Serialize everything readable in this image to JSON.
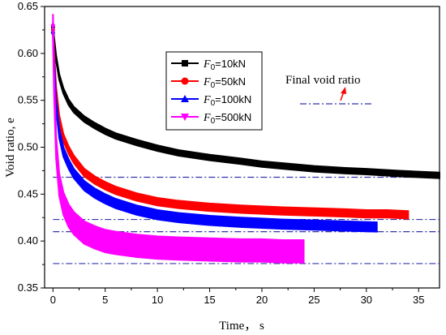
{
  "chart_data": {
    "type": "line",
    "xlabel": "Time， s",
    "ylabel": "Void ratio, e",
    "xlim": [
      -0.8,
      37
    ],
    "ylim": [
      0.35,
      0.65
    ],
    "xticks": [
      0,
      5,
      10,
      15,
      20,
      25,
      30,
      35
    ],
    "yticks": [
      0.35,
      0.4,
      0.45,
      0.5,
      0.55,
      0.6,
      0.65
    ],
    "xtick_labels": [
      "0",
      "5",
      "10",
      "15",
      "20",
      "25",
      "30",
      "35"
    ],
    "ytick_labels": [
      "0.35",
      "0.40",
      "0.45",
      "0.50",
      "0.55",
      "0.60",
      "0.65"
    ],
    "legend_position": "top-center",
    "series": [
      {
        "name": "F0=10kN",
        "legend_subscript": "0",
        "legend_suffix": "=10kN",
        "color": "#000000",
        "marker": "square",
        "x": [
          0,
          0.1,
          0.3,
          0.6,
          1,
          1.5,
          2,
          3,
          4,
          5,
          6,
          8,
          10,
          12,
          15,
          18,
          20,
          22,
          25,
          28,
          30,
          33,
          35,
          37
        ],
        "y": [
          0.628,
          0.615,
          0.595,
          0.575,
          0.56,
          0.548,
          0.54,
          0.53,
          0.523,
          0.517,
          0.512,
          0.505,
          0.499,
          0.494,
          0.489,
          0.485,
          0.482,
          0.48,
          0.477,
          0.475,
          0.474,
          0.472,
          0.471,
          0.47
        ],
        "band": 0.003,
        "final_void_ratio": 0.468
      },
      {
        "name": "F0=50kN",
        "legend_subscript": "0",
        "legend_suffix": "=50kN",
        "color": "#ff0000",
        "marker": "circle",
        "x": [
          0,
          0.1,
          0.3,
          0.6,
          1,
          1.5,
          2,
          3,
          4,
          5,
          6,
          8,
          10,
          12,
          15,
          18,
          20,
          22,
          25,
          28,
          30,
          32,
          34
        ],
        "y": [
          0.625,
          0.6,
          0.56,
          0.53,
          0.51,
          0.497,
          0.487,
          0.473,
          0.465,
          0.459,
          0.454,
          0.447,
          0.442,
          0.439,
          0.436,
          0.434,
          0.433,
          0.432,
          0.431,
          0.43,
          0.429,
          0.429,
          0.428
        ],
        "band": 0.004,
        "final_void_ratio": 0.423
      },
      {
        "name": "F0=100kN",
        "legend_subscript": "0",
        "legend_suffix": "=100kN",
        "color": "#0000ff",
        "marker": "triangle-up",
        "x": [
          0,
          0.1,
          0.3,
          0.6,
          1,
          1.5,
          2,
          3,
          4,
          5,
          6,
          8,
          10,
          12,
          15,
          18,
          20,
          22,
          25,
          28,
          31
        ],
        "y": [
          0.622,
          0.59,
          0.545,
          0.515,
          0.495,
          0.482,
          0.472,
          0.459,
          0.451,
          0.445,
          0.44,
          0.433,
          0.428,
          0.425,
          0.422,
          0.42,
          0.419,
          0.418,
          0.417,
          0.416,
          0.415
        ],
        "band": 0.005,
        "final_void_ratio": 0.41
      },
      {
        "name": "F0=500kN",
        "legend_subscript": "0",
        "legend_suffix": "=500kN",
        "color": "#ff00ff",
        "marker": "triangle-down",
        "x": [
          0,
          0.1,
          0.3,
          0.6,
          1,
          1.5,
          2,
          3,
          4,
          5,
          6,
          8,
          10,
          12,
          15,
          18,
          20,
          22,
          24
        ],
        "y": [
          0.63,
          0.57,
          0.5,
          0.46,
          0.44,
          0.427,
          0.419,
          0.409,
          0.404,
          0.4,
          0.398,
          0.395,
          0.393,
          0.392,
          0.391,
          0.39,
          0.39,
          0.389,
          0.389
        ],
        "band": 0.012,
        "final_void_ratio": 0.376
      }
    ],
    "reference_lines": {
      "style": "dash-dot",
      "color": "#3333aa",
      "x_start": 0
    },
    "annotation": {
      "text": "Final void ratio"
    }
  }
}
